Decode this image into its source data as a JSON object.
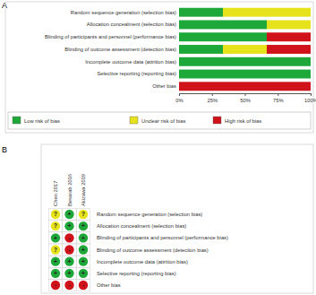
{
  "panels": [
    "A",
    "B"
  ],
  "chart_data": {
    "type": "bar",
    "orientation": "horizontal",
    "stacked": true,
    "categories": [
      "Random sequence generation (selection bias)",
      "Allocation concealment (selection bias)",
      "Blinding of participants and personnel (performance bias)",
      "Blinding of outcome assessment (detection bias)",
      "Incomplete outcome data (attrition bias)",
      "Selective reporting (reporting bias)",
      "Other bias"
    ],
    "series": [
      {
        "name": "Low risk of bias",
        "color": "#1fa83a",
        "values": [
          33.33,
          66.67,
          66.67,
          33.33,
          100,
          100,
          0
        ]
      },
      {
        "name": "Unclear risk of bias",
        "color": "#e6e21c",
        "values": [
          66.67,
          33.33,
          0,
          33.33,
          0,
          0,
          0
        ]
      },
      {
        "name": "High risk of bias",
        "color": "#d0121b",
        "values": [
          0,
          0,
          33.33,
          33.33,
          0,
          0,
          100
        ]
      }
    ],
    "xlim": [
      0,
      100
    ],
    "xticks": [
      {
        "value": 0,
        "label": "0%"
      },
      {
        "value": 25,
        "label": "25%"
      },
      {
        "value": 50,
        "label": "50%"
      },
      {
        "value": 75,
        "label": "75%"
      },
      {
        "value": 100,
        "label": "100%"
      }
    ],
    "grid": false,
    "legend": "bottom"
  },
  "risk_summary": {
    "studies": [
      "Chen 2017",
      "Besarab 2016",
      "Akizawa 2019"
    ],
    "domains": [
      "Random sequence generation (selection bias)",
      "Allocation concealment (selection bias)",
      "Blinding of participants and personnel (performance bias)",
      "Blinding of outcome assessment (detection bias)",
      "Incomplete outcome data (attrition bias)",
      "Selective reporting (reporting bias)",
      "Other bias"
    ],
    "judgements": [
      [
        "?",
        "+",
        "?"
      ],
      [
        "?",
        "+",
        "+"
      ],
      [
        "+",
        "-",
        "+"
      ],
      [
        "?",
        "-",
        "+"
      ],
      [
        "+",
        "+",
        "+"
      ],
      [
        "+",
        "+",
        "+"
      ],
      [
        "-",
        "-",
        "-"
      ]
    ],
    "colors": {
      "+": "#1fa83a",
      "?": "#e6e21c",
      "-": "#d0121b"
    }
  }
}
